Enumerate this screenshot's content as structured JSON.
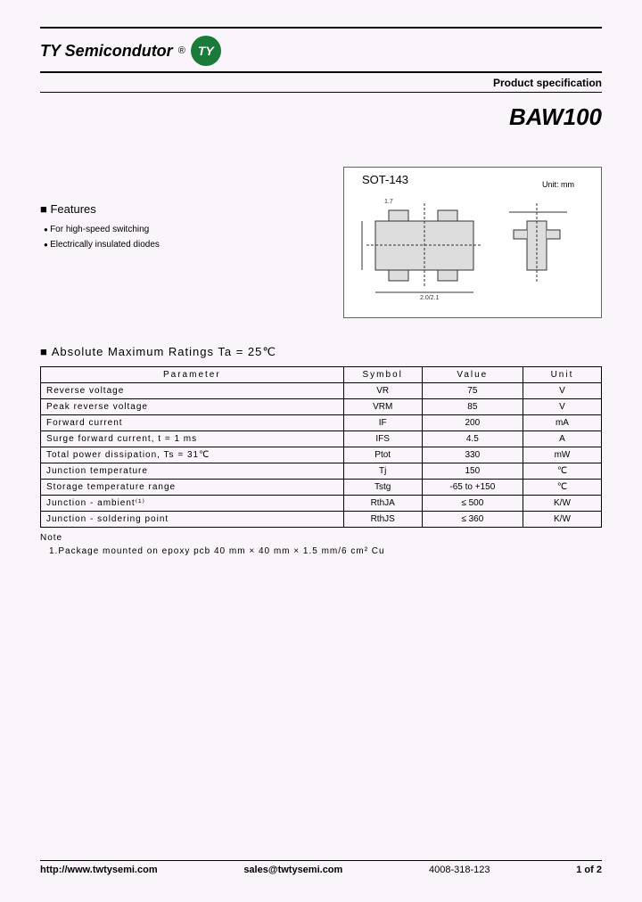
{
  "company": {
    "name": "TY Semicondutor",
    "logo_text": "TY",
    "logo_bg": "#1a7a3a",
    "logo_fg": "#ffffff"
  },
  "header": {
    "spec_label": "Product specification",
    "part_number": "BAW100"
  },
  "features": {
    "title": "Features",
    "items": [
      "For high-speed switching",
      "Electrically insulated diodes"
    ]
  },
  "package": {
    "label": "SOT-143",
    "unit": "Unit: mm"
  },
  "ratings": {
    "title": "Absolute Maximum Ratings Ta = 25℃",
    "columns": [
      "Parameter",
      "Symbol",
      "Value",
      "Unit"
    ],
    "rows": [
      {
        "param": "Reverse voltage",
        "symbol": "VR",
        "value": "75",
        "unit": "V"
      },
      {
        "param": "Peak reverse voltage",
        "symbol": "VRM",
        "value": "85",
        "unit": "V"
      },
      {
        "param": "Forward current",
        "symbol": "IF",
        "value": "200",
        "unit": "mA"
      },
      {
        "param": "Surge forward current, t = 1 ms",
        "symbol": "IFS",
        "value": "4.5",
        "unit": "A"
      },
      {
        "param": "Total power dissipation, Ts = 31℃",
        "symbol": "Ptot",
        "value": "330",
        "unit": "mW"
      },
      {
        "param": "Junction temperature",
        "symbol": "Tj",
        "value": "150",
        "unit": "℃"
      },
      {
        "param": "Storage temperature range",
        "symbol": "Tstg",
        "value": "-65 to +150",
        "unit": "℃"
      },
      {
        "param": "Junction - ambient⁽¹⁾",
        "symbol": "RthJA",
        "value": "≤ 500",
        "unit": "K/W"
      },
      {
        "param": "Junction - soldering point",
        "symbol": "RthJS",
        "value": "≤ 360",
        "unit": "K/W"
      }
    ],
    "note_label": "Note",
    "note_text": "1.Package mounted on epoxy pcb 40 mm × 40 mm × 1.5 mm/6 cm² Cu"
  },
  "footer": {
    "url": "http://www.twtysemi.com",
    "email": "sales@twtysemi.com",
    "phone": "4008-318-123",
    "page": "1 of 2"
  }
}
